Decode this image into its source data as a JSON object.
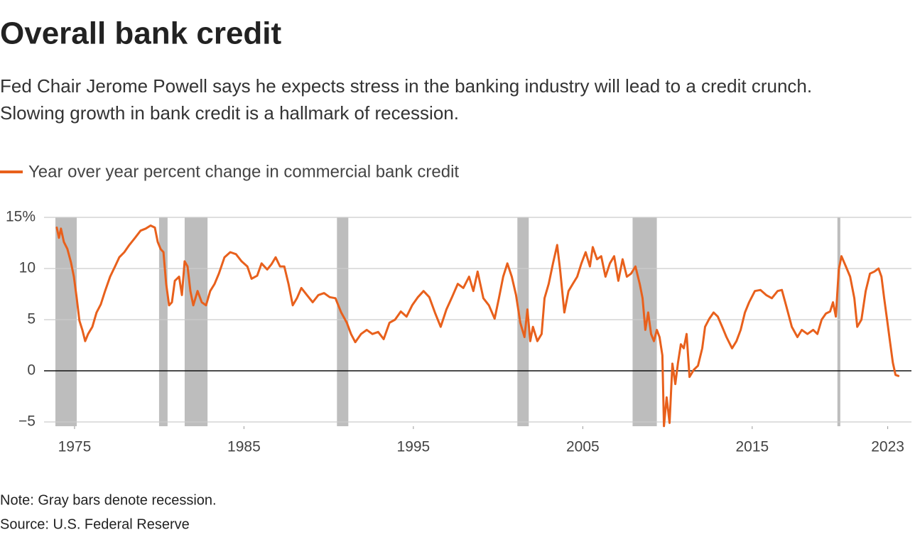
{
  "chart_data": {
    "type": "line",
    "title": "Overall bank credit",
    "subtitle": [
      "Fed Chair Jerome Powell says he expects stress in the banking industry will lead to a credit crunch.",
      "Slowing growth in bank credit is a hallmark of recession."
    ],
    "note": "Note: Gray bars denote recession.",
    "source": "Source: U.S. Federal Reserve",
    "x": [
      1973.95,
      1974.08,
      1974.2,
      1974.37,
      1974.58,
      1974.79,
      1974.96,
      1975.13,
      1975.29,
      1975.46,
      1975.63,
      1975.8,
      1976.05,
      1976.3,
      1976.55,
      1976.8,
      1977.1,
      1977.39,
      1977.64,
      1977.94,
      1978.23,
      1978.57,
      1978.9,
      1979.2,
      1979.49,
      1979.74,
      1979.91,
      1980.08,
      1980.25,
      1980.41,
      1980.58,
      1980.75,
      1980.92,
      1981.17,
      1981.34,
      1981.5,
      1981.67,
      1981.84,
      1982.01,
      1982.26,
      1982.51,
      1982.76,
      1983.01,
      1983.27,
      1983.52,
      1983.85,
      1984.19,
      1984.53,
      1984.86,
      1985.2,
      1985.45,
      1985.78,
      1986.04,
      1986.37,
      1986.62,
      1986.87,
      1987.13,
      1987.38,
      1987.63,
      1987.88,
      1988.13,
      1988.39,
      1988.72,
      1989.06,
      1989.39,
      1989.73,
      1990.06,
      1990.4,
      1990.74,
      1991.07,
      1991.32,
      1991.57,
      1991.91,
      1992.25,
      1992.58,
      1992.92,
      1993.25,
      1993.59,
      1993.92,
      1994.26,
      1994.6,
      1994.93,
      1995.27,
      1995.6,
      1995.94,
      1996.27,
      1996.61,
      1996.95,
      1997.28,
      1997.62,
      1997.95,
      1998.29,
      1998.54,
      1998.79,
      1999.13,
      1999.46,
      1999.8,
      2000.05,
      2000.3,
      2000.55,
      2000.81,
      2001.06,
      2001.31,
      2001.56,
      2001.73,
      2001.9,
      2002.06,
      2002.32,
      2002.57,
      2002.74,
      2002.99,
      2003.24,
      2003.49,
      2003.66,
      2003.91,
      2004.16,
      2004.41,
      2004.67,
      2004.92,
      2005.17,
      2005.42,
      2005.59,
      2005.84,
      2006.09,
      2006.34,
      2006.6,
      2006.85,
      2007.1,
      2007.35,
      2007.6,
      2007.85,
      2008.11,
      2008.36,
      2008.53,
      2008.69,
      2008.86,
      2009.03,
      2009.2,
      2009.37,
      2009.53,
      2009.7,
      2009.79,
      2009.95,
      2010.12,
      2010.29,
      2010.46,
      2010.62,
      2010.79,
      2010.96,
      2011.13,
      2011.3,
      2011.55,
      2011.8,
      2012.05,
      2012.22,
      2012.47,
      2012.72,
      2012.97,
      2013.23,
      2013.48,
      2013.81,
      2014.07,
      2014.32,
      2014.57,
      2014.82,
      2015.16,
      2015.49,
      2015.83,
      2016.16,
      2016.5,
      2016.75,
      2017.0,
      2017.34,
      2017.67,
      2017.93,
      2018.26,
      2018.6,
      2018.85,
      2019.1,
      2019.35,
      2019.6,
      2019.77,
      2019.94,
      2020.11,
      2020.27,
      2020.53,
      2020.78,
      2021.03,
      2021.2,
      2021.45,
      2021.7,
      2021.95,
      2022.21,
      2022.46,
      2022.63,
      2022.79,
      2022.96,
      2023.13,
      2023.3,
      2023.46,
      2023.63
    ],
    "series": [
      {
        "name": "Year over year percent change in commercial bank credit",
        "color": "#e8601c",
        "values": [
          14.0,
          13.0,
          13.9,
          12.6,
          11.9,
          10.6,
          9.2,
          7.1,
          4.9,
          4.0,
          2.9,
          3.6,
          4.3,
          5.7,
          6.5,
          7.8,
          9.2,
          10.2,
          11.1,
          11.6,
          12.3,
          13.0,
          13.7,
          13.9,
          14.2,
          14.0,
          12.6,
          11.9,
          11.6,
          8.5,
          6.4,
          6.7,
          8.8,
          9.2,
          7.4,
          10.7,
          10.2,
          7.8,
          6.4,
          7.8,
          6.7,
          6.4,
          7.8,
          8.5,
          9.5,
          11.1,
          11.6,
          11.4,
          10.7,
          10.2,
          9.0,
          9.3,
          10.5,
          9.9,
          10.4,
          11.1,
          10.2,
          10.2,
          8.5,
          6.4,
          7.1,
          8.1,
          7.4,
          6.7,
          7.4,
          7.6,
          7.2,
          7.1,
          5.7,
          4.7,
          3.6,
          2.8,
          3.6,
          4.0,
          3.6,
          3.8,
          3.1,
          4.7,
          5.0,
          5.8,
          5.3,
          6.4,
          7.2,
          7.8,
          7.2,
          5.7,
          4.3,
          6.0,
          7.2,
          8.5,
          8.1,
          9.2,
          7.8,
          9.7,
          7.1,
          6.4,
          5.1,
          7.1,
          9.2,
          10.5,
          9.2,
          7.4,
          4.7,
          3.3,
          6.0,
          2.9,
          4.3,
          2.9,
          3.6,
          7.1,
          8.5,
          10.5,
          12.3,
          9.9,
          5.7,
          7.8,
          8.5,
          9.2,
          10.5,
          11.6,
          10.2,
          12.1,
          10.9,
          11.2,
          9.2,
          10.5,
          11.2,
          8.8,
          10.9,
          9.2,
          9.5,
          10.2,
          8.5,
          7.1,
          4.0,
          5.7,
          3.6,
          2.9,
          4.0,
          3.3,
          1.5,
          -5.4,
          -2.6,
          -5.1,
          0.7,
          -1.3,
          0.8,
          2.6,
          2.2,
          3.6,
          -0.6,
          0.1,
          0.5,
          2.2,
          4.3,
          5.1,
          5.7,
          5.3,
          4.3,
          3.3,
          2.2,
          2.9,
          4.0,
          5.7,
          6.7,
          7.8,
          7.9,
          7.4,
          7.1,
          7.8,
          7.9,
          6.4,
          4.3,
          3.3,
          4.0,
          3.6,
          4.0,
          3.6,
          5.0,
          5.6,
          5.8,
          6.7,
          5.3,
          9.9,
          11.2,
          10.2,
          9.2,
          7.1,
          4.3,
          5.0,
          7.8,
          9.5,
          9.7,
          10.0,
          9.2,
          7.1,
          5.0,
          2.9,
          0.8,
          -0.4,
          -0.5
        ]
      }
    ],
    "recessions": [
      [
        1973.87,
        1975.13
      ],
      [
        1979.99,
        1980.49
      ],
      [
        1981.5,
        1982.85
      ],
      [
        1990.49,
        1991.16
      ],
      [
        2001.14,
        2001.81
      ],
      [
        2007.94,
        2009.37
      ],
      [
        2020.03,
        2020.2
      ]
    ],
    "xlim": [
      1973.2,
      2024.4
    ],
    "xticks": [
      1975,
      1985,
      1995,
      2005,
      2015,
      2023
    ],
    "ylim": [
      -5,
      15
    ],
    "yticks": [
      {
        "value": -5,
        "label": "−5"
      },
      0,
      5,
      10,
      {
        "value": 15,
        "label": "15%"
      }
    ],
    "grid": true
  }
}
